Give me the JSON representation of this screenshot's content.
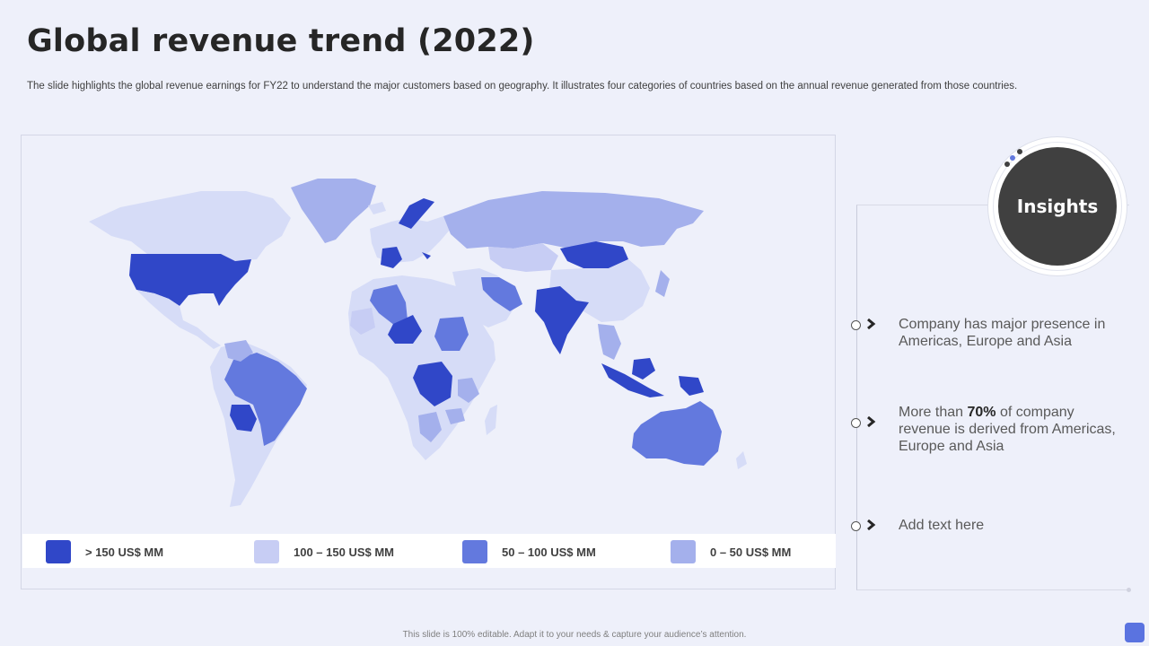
{
  "slide": {
    "title": "Global revenue trend (2022)",
    "subtitle": "The slide highlights the global revenue earnings for FY22 to understand the major customers based on geography. It illustrates four categories of countries based on the annual revenue generated from those countries.",
    "footer": "This slide is 100% editable.  Adapt it to your needs & capture your audience’s attention."
  },
  "colors": {
    "tier1": "#3047c8",
    "tier2": "#c7cdf4",
    "tier3": "#6379de",
    "tier4": "#a4b0ec",
    "land_default": "#d6dcf7"
  },
  "legend": [
    {
      "label": "> 150 US$ MM",
      "color": "#3047c8"
    },
    {
      "label": "100 – 150 US$ MM",
      "color": "#c7cdf4"
    },
    {
      "label": "50 – 100 US$ MM",
      "color": "#6379de"
    },
    {
      "label": "0 – 50 US$ MM",
      "color": "#a4b0ec"
    }
  ],
  "insights": {
    "heading": "Insights",
    "items": [
      {
        "text": "Company has major presence in Americas, Europe and Asia"
      },
      {
        "pre": "More than ",
        "bold": "70%",
        "post": " of company revenue  is derived from Americas, Europe and Asia"
      },
      {
        "text": "Add text here"
      }
    ]
  },
  "icons": [
    "circle-bullet-icon",
    "chevron-right-icon"
  ]
}
